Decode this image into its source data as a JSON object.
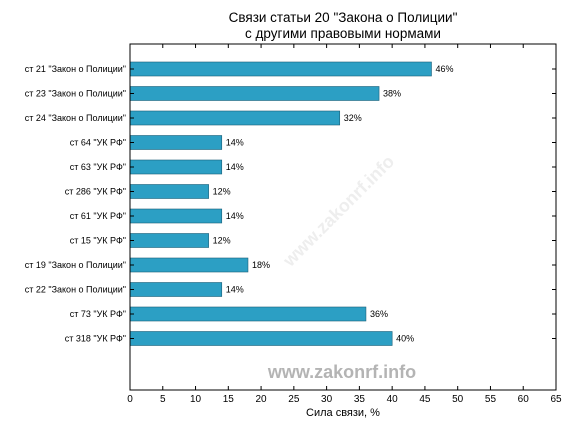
{
  "chart_data": {
    "type": "bar",
    "orientation": "horizontal",
    "title_line1": "Связи статьи 20 \"Закона о Полиции\"",
    "title_line2": "с другими правовыми нормами",
    "xlabel": "Сила связи, %",
    "ylabel": "",
    "xlim": [
      0,
      65
    ],
    "xticks": [
      0,
      5,
      10,
      15,
      20,
      25,
      30,
      35,
      40,
      45,
      50,
      55,
      60,
      65
    ],
    "categories": [
      "ст 21 \"Закон о Полиции\"",
      "ст 23 \"Закон о Полиции\"",
      "ст 24 \"Закон о Полиции\"",
      "ст 64 \"УК РФ\"",
      "ст 63 \"УК РФ\"",
      "ст 286 \"УК РФ\"",
      "ст 61 \"УК РФ\"",
      "ст 15 \"УК РФ\"",
      "ст 19 \"Закон о Полиции\"",
      "ст 22 \"Закон о Полиции\"",
      "ст 73 \"УК РФ\"",
      "ст 318 \"УК РФ\""
    ],
    "values": [
      46,
      38,
      32,
      14,
      14,
      12,
      14,
      12,
      18,
      14,
      36,
      40
    ],
    "value_labels": [
      "46%",
      "38%",
      "32%",
      "14%",
      "14%",
      "12%",
      "14%",
      "12%",
      "18%",
      "14%",
      "36%",
      "40%"
    ],
    "bar_color": "#2c9fc4",
    "grid": false,
    "legend": "none"
  },
  "watermark": "www.zakonrf.info",
  "watermark_diagonal": "www.zakonrf.info"
}
